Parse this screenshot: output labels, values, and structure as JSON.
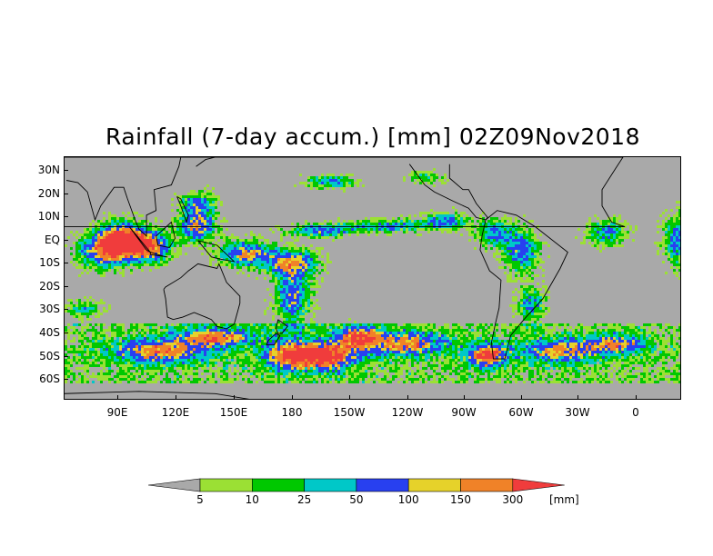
{
  "title": "Rainfall (7-day accum.) [mm] 02Z09Nov2018",
  "lat_labels": [
    "30N",
    "20N",
    "10N",
    "EQ",
    "10S",
    "20S",
    "30S",
    "40S",
    "50S",
    "60S"
  ],
  "lon_labels": [
    "90E",
    "120E",
    "150E",
    "180",
    "150W",
    "120W",
    "90W",
    "60W",
    "30W",
    "0"
  ],
  "legend": {
    "thresholds": [
      "5",
      "10",
      "25",
      "50",
      "100",
      "150",
      "300"
    ],
    "unit": "[mm]",
    "colors": [
      "#a9a9a9",
      "#9be034",
      "#00c800",
      "#00c8c8",
      "#2840f0",
      "#e6d22a",
      "#f08228",
      "#f03c3c"
    ]
  },
  "colors": {
    "land_border": "#000000",
    "background": "#a9a9a9"
  }
}
